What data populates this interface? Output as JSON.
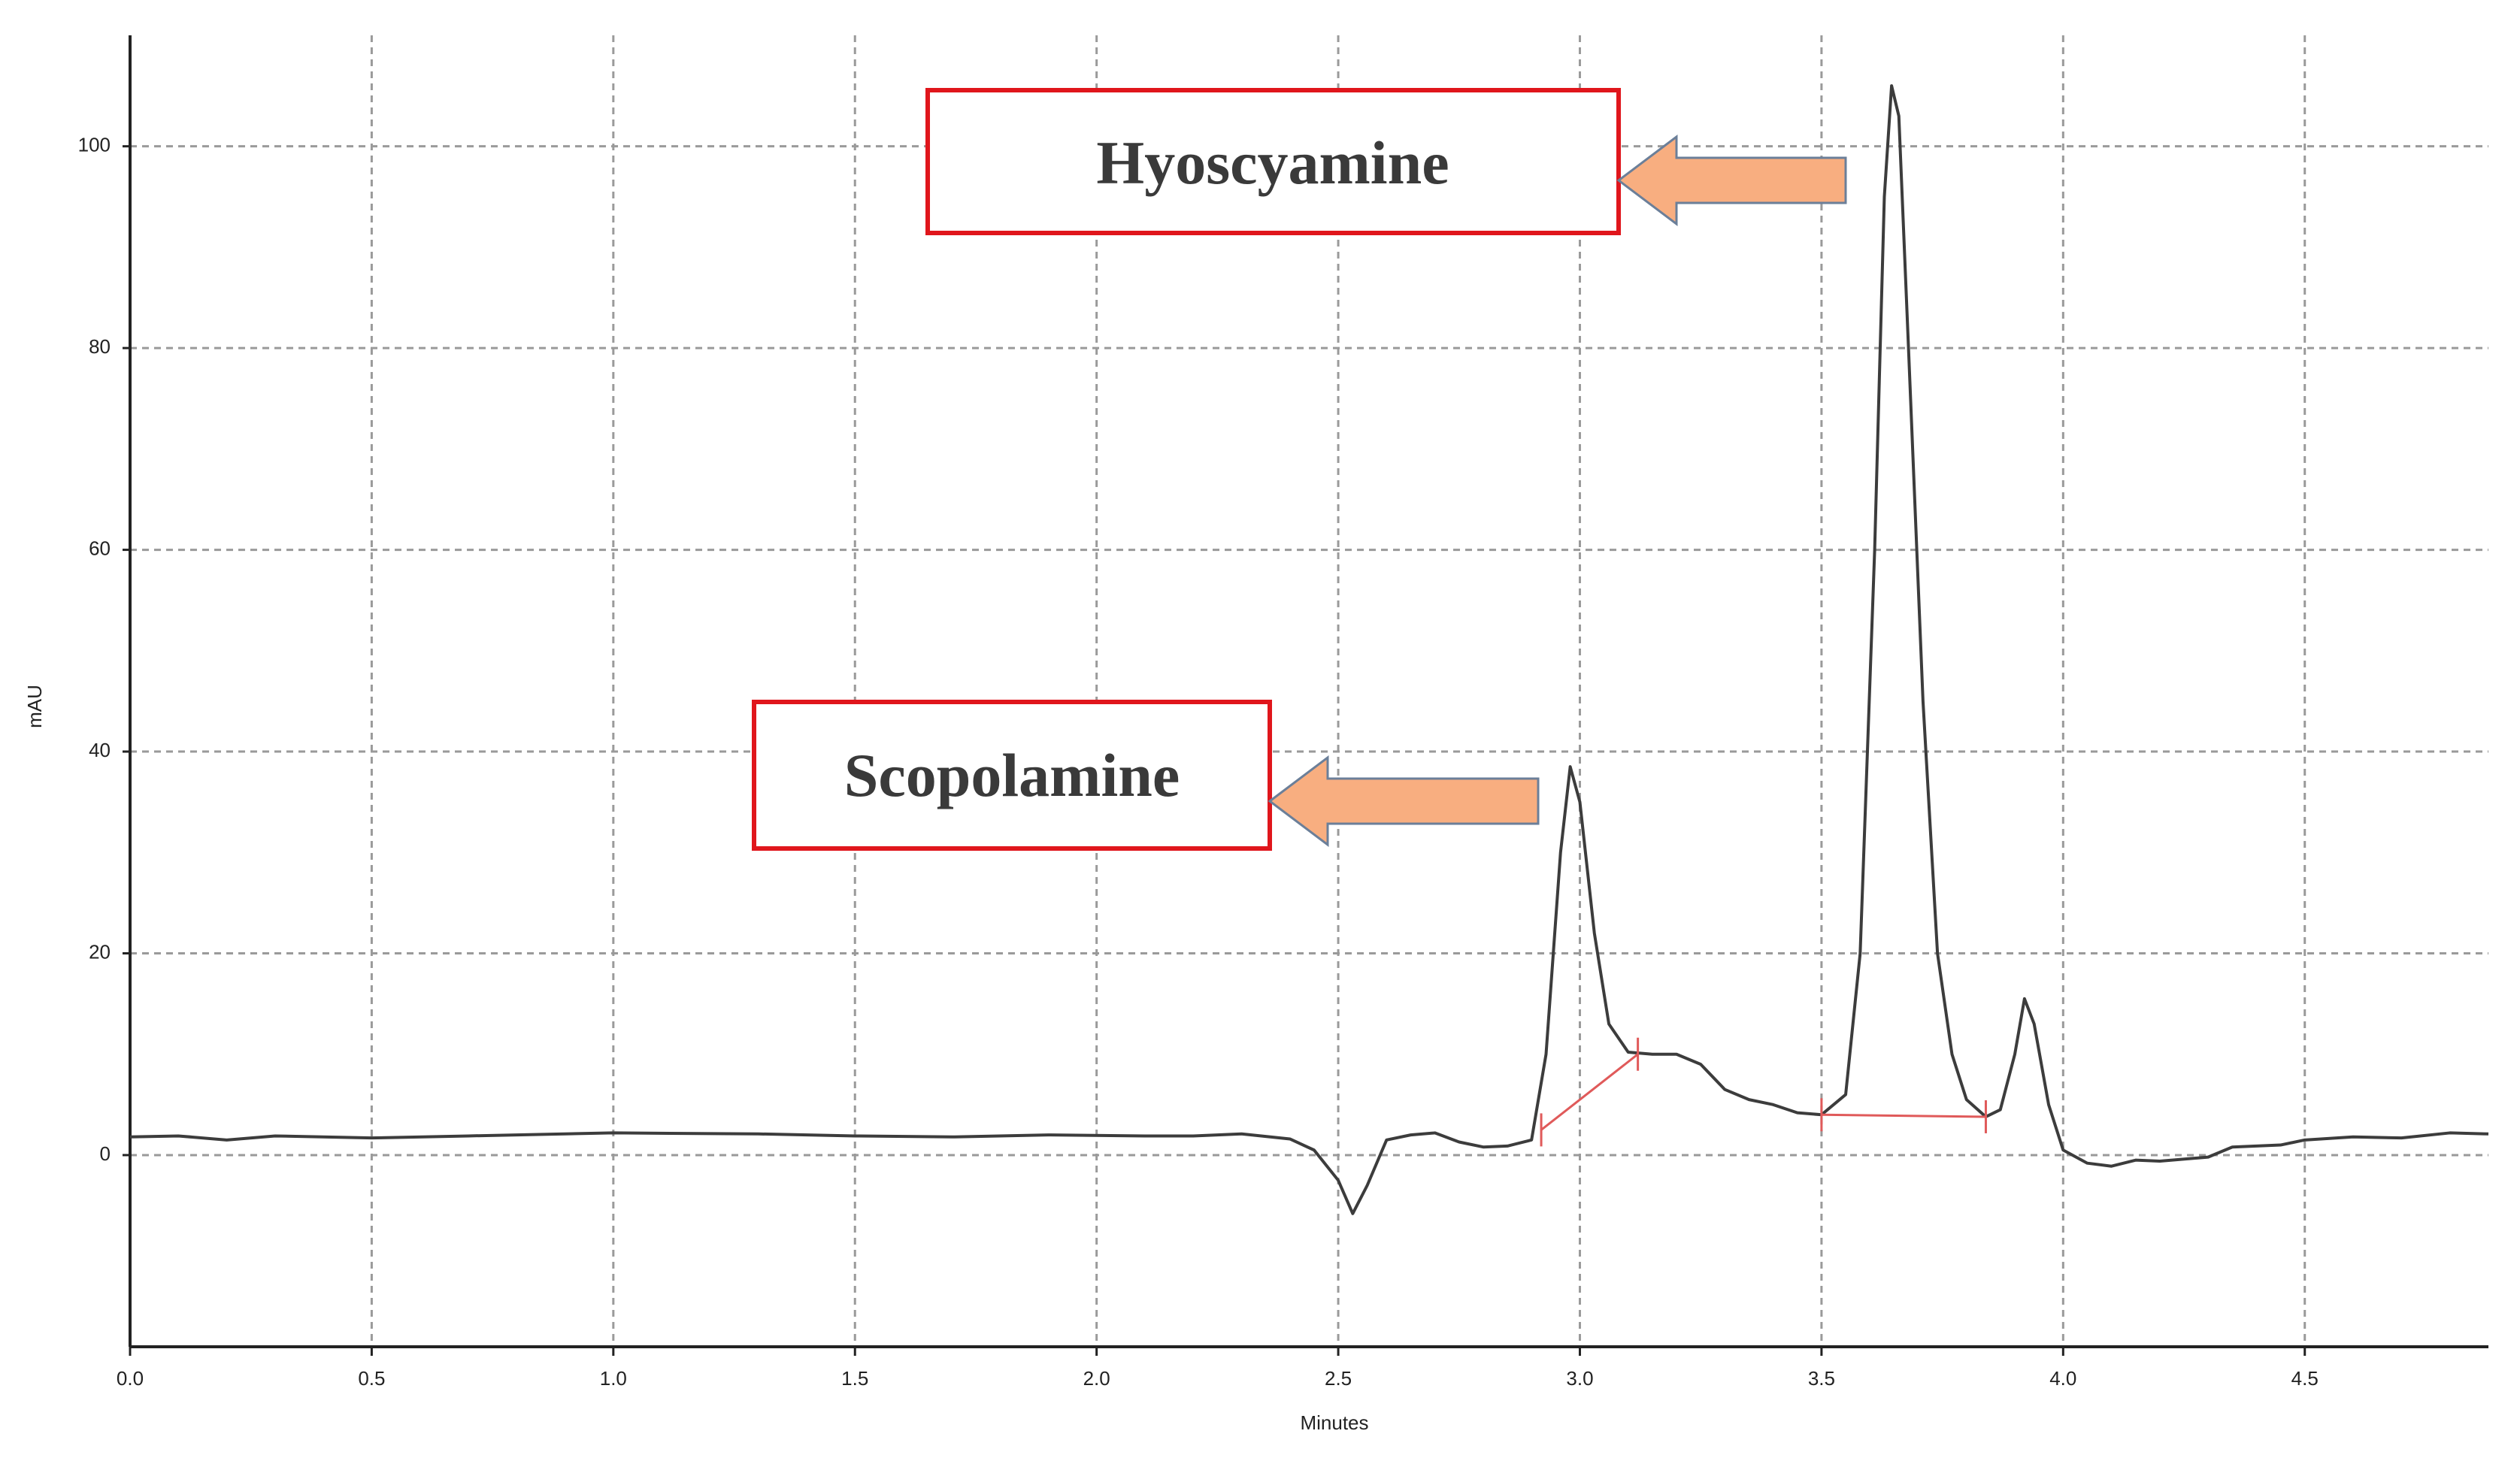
{
  "chart_data": {
    "type": "line",
    "xlabel": "Minutes",
    "ylabel": "mAU",
    "annotations": [
      "Hyoscyamine",
      "Scopolamine"
    ],
    "x": [
      0,
      0.1,
      0.2,
      0.3,
      0.5,
      0.7,
      1.0,
      1.3,
      1.5,
      1.7,
      1.9,
      2.1,
      2.2,
      2.3,
      2.4,
      2.45,
      2.5,
      2.53,
      2.56,
      2.6,
      2.65,
      2.7,
      2.75,
      2.8,
      2.85,
      2.9,
      2.93,
      2.96,
      2.98,
      3.0,
      3.03,
      3.06,
      3.1,
      3.15,
      3.2,
      3.25,
      3.3,
      3.35,
      3.4,
      3.45,
      3.5,
      3.55,
      3.58,
      3.61,
      3.63,
      3.645,
      3.66,
      3.68,
      3.71,
      3.74,
      3.77,
      3.8,
      3.84,
      3.87,
      3.9,
      3.92,
      3.94,
      3.97,
      4.0,
      4.05,
      4.1,
      4.15,
      4.2,
      4.3,
      4.35,
      4.45,
      4.5,
      4.6,
      4.7,
      4.8,
      4.88
    ],
    "values": [
      1.8,
      1.9,
      1.5,
      1.9,
      1.7,
      1.9,
      2.2,
      2.1,
      1.9,
      1.8,
      2.0,
      1.9,
      1.9,
      2.1,
      1.6,
      0.5,
      -2.5,
      -5.8,
      -3,
      1.5,
      2.0,
      2.2,
      1.3,
      0.8,
      0.9,
      1.5,
      10,
      30,
      38.5,
      35,
      22,
      13,
      10.2,
      10,
      10,
      9,
      6.5,
      5.5,
      5,
      4.2,
      4,
      6,
      20,
      60,
      95,
      106,
      103,
      80,
      45,
      20,
      10,
      5.5,
      3.8,
      4.5,
      10,
      15.5,
      13,
      5,
      0.5,
      -0.8,
      -1.1,
      -0.5,
      -0.6,
      -0.2,
      0.8,
      1,
      1.5,
      1.8,
      1.7,
      2.2,
      2.1
    ],
    "color": "#3c3c3c",
    "baselines": [
      {
        "x": [
          2.92,
          3.12
        ],
        "y": [
          2.5,
          10
        ]
      },
      {
        "x": [
          3.5,
          3.84
        ],
        "y": [
          4,
          3.8
        ]
      }
    ],
    "baseline_color": "#e05a5a",
    "xlim": [
      0,
      4.88
    ],
    "ylim": [
      -19,
      111
    ],
    "xticks": [
      {
        "value": 0,
        "label": "0.0"
      },
      0.5,
      {
        "value": 1,
        "label": "1.0"
      },
      1.5,
      {
        "value": 2,
        "label": "2.0"
      },
      2.5,
      {
        "value": 3,
        "label": "3.0"
      },
      3.5,
      {
        "value": 4,
        "label": "4.0"
      },
      4.5
    ],
    "yticks": [
      0,
      20,
      40,
      60,
      80,
      100
    ],
    "grid": true
  }
}
